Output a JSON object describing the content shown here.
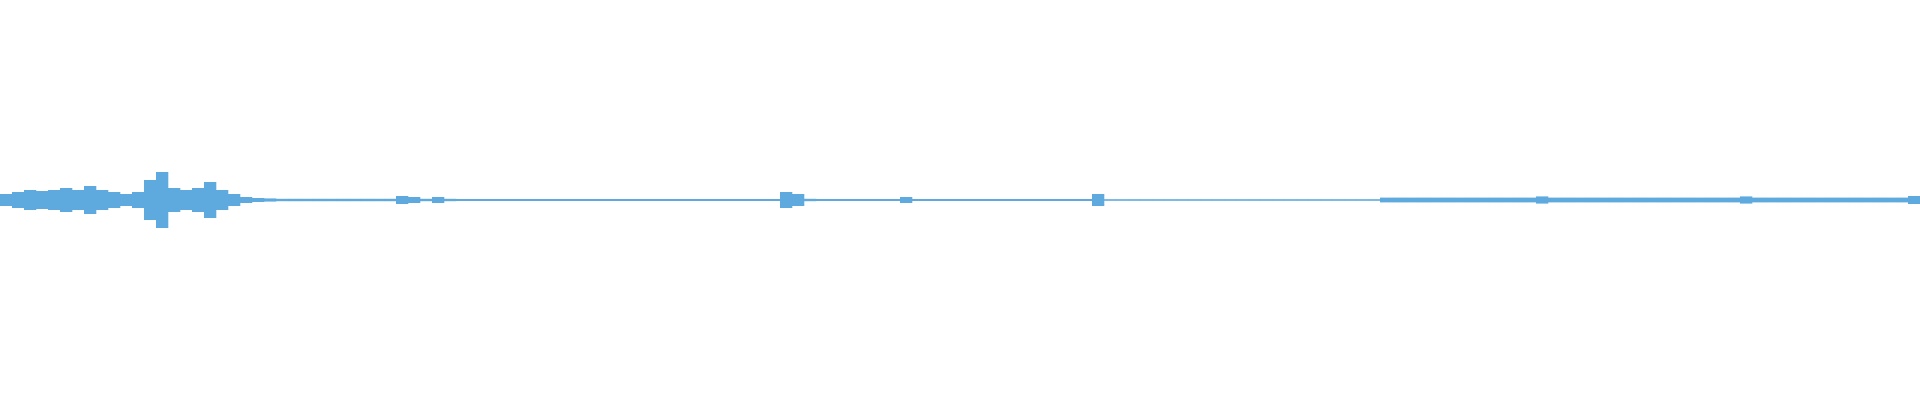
{
  "chart_data": {
    "type": "waveform",
    "color": "#5ea9de",
    "ylim": [
      -1,
      1
    ],
    "values": [
      0.03,
      0.04,
      0.05,
      0.045,
      0.05,
      0.06,
      0.05,
      0.07,
      0.05,
      0.04,
      0.03,
      0.04,
      0.1,
      0.14,
      0.06,
      0.05,
      0.06,
      0.09,
      0.05,
      0.03,
      0.015,
      0.01,
      0.008,
      0.006,
      0.006,
      0.006,
      0.006,
      0.006,
      0.006,
      0.006,
      0.006,
      0.006,
      0.006,
      0.02,
      0.015,
      0.006,
      0.015,
      0.006,
      0.005,
      0.005,
      0.005,
      0.005,
      0.005,
      0.005,
      0.005,
      0.005,
      0.005,
      0.005,
      0.005,
      0.005,
      0.005,
      0.005,
      0.005,
      0.005,
      0.005,
      0.005,
      0.005,
      0.005,
      0.005,
      0.005,
      0.005,
      0.005,
      0.005,
      0.005,
      0.005,
      0.04,
      0.03,
      0.006,
      0.005,
      0.005,
      0.005,
      0.005,
      0.005,
      0.005,
      0.005,
      0.015,
      0.005,
      0.005,
      0.005,
      0.005,
      0.005,
      0.005,
      0.005,
      0.005,
      0.005,
      0.005,
      0.005,
      0.005,
      0.005,
      0.005,
      0.005,
      0.03,
      0.004,
      0.004,
      0.004,
      0.004,
      0.004,
      0.004,
      0.004,
      0.004,
      0.004,
      0.004,
      0.004,
      0.004,
      0.004,
      0.004,
      0.004,
      0.004,
      0.004,
      0.004,
      0.004,
      0.004,
      0.004,
      0.004,
      0.004,
      0.012,
      0.012,
      0.012,
      0.012,
      0.012,
      0.012,
      0.012,
      0.012,
      0.012,
      0.012,
      0.012,
      0.012,
      0.012,
      0.018,
      0.012,
      0.012,
      0.012,
      0.012,
      0.012,
      0.012,
      0.012,
      0.012,
      0.012,
      0.012,
      0.012,
      0.012,
      0.012,
      0.012,
      0.012,
      0.012,
      0.018,
      0.012,
      0.012,
      0.012,
      0.012,
      0.012,
      0.012,
      0.012,
      0.012,
      0.012,
      0.012,
      0.012,
      0.012,
      0.012,
      0.02
    ]
  }
}
